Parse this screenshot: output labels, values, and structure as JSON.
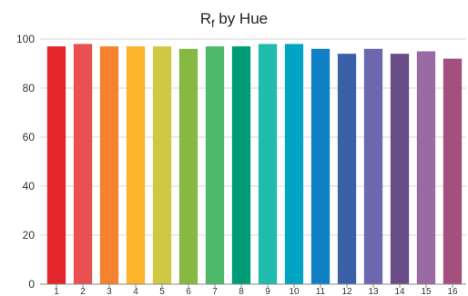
{
  "chart_data": {
    "type": "bar",
    "title": {
      "main": "R",
      "subscript": "f",
      "rest": " by Hue"
    },
    "xlabel": "",
    "ylabel": "",
    "ylim": [
      0,
      100
    ],
    "yticks": [
      0,
      20,
      40,
      60,
      80,
      100
    ],
    "grid": true,
    "categories": [
      "1",
      "2",
      "3",
      "4",
      "5",
      "6",
      "7",
      "8",
      "9",
      "10",
      "11",
      "12",
      "13",
      "14",
      "15",
      "16"
    ],
    "values": [
      97,
      98,
      97,
      97,
      97,
      96,
      97,
      97,
      98,
      98,
      96,
      94,
      96,
      94,
      95,
      92
    ],
    "colors": [
      "#e3262b",
      "#e85052",
      "#f5822f",
      "#fdb32c",
      "#cfc843",
      "#85b944",
      "#4db96a",
      "#009c78",
      "#21bcad",
      "#00a5c3",
      "#0f80c3",
      "#3a61a8",
      "#6d68ad",
      "#6a4c86",
      "#9a6aa4",
      "#a54f7e"
    ]
  }
}
